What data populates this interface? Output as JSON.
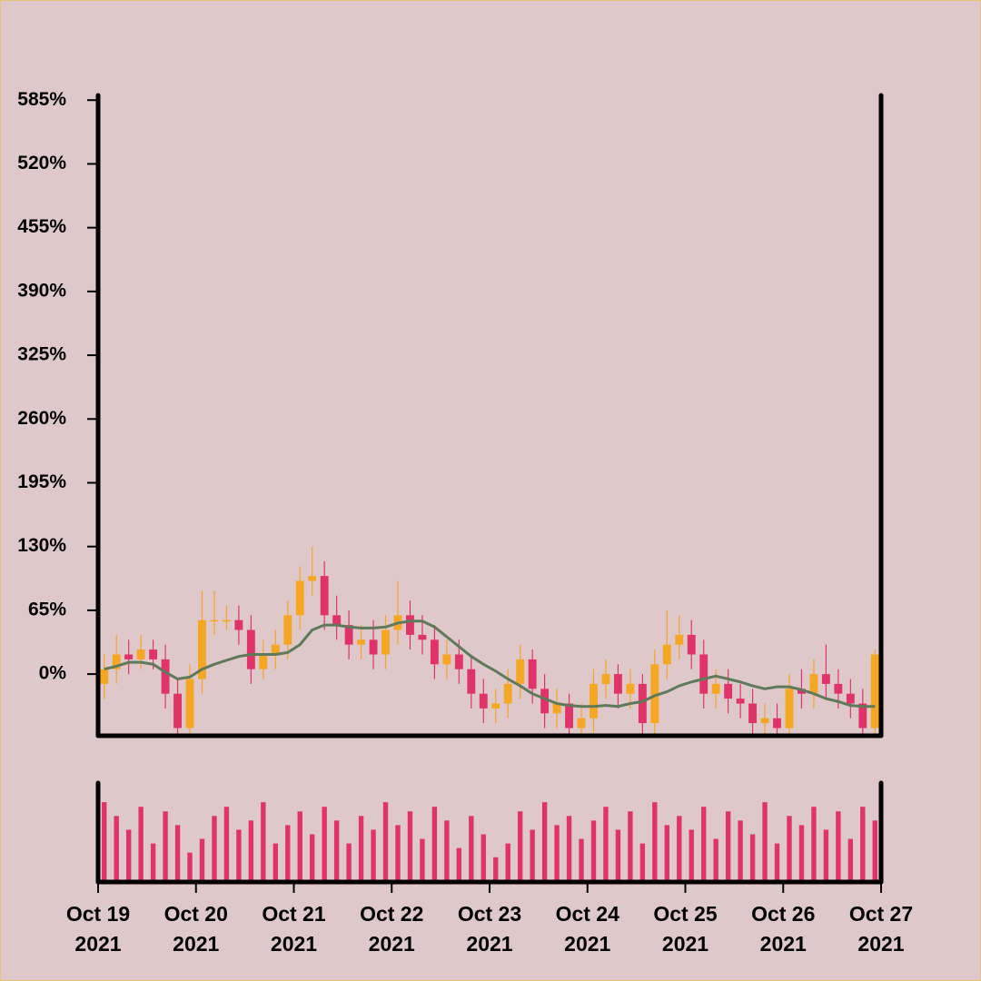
{
  "chart_data": {
    "type": "candlestick",
    "x": [
      0,
      0.125,
      0.25,
      0.375,
      0.5,
      0.625,
      0.75,
      0.875,
      1,
      1.125,
      1.25,
      1.375,
      1.5,
      1.625,
      1.75,
      1.875,
      2,
      2.125,
      2.25,
      2.375,
      2.5,
      2.625,
      2.75,
      2.875,
      3,
      3.125,
      3.25,
      3.375,
      3.5,
      3.625,
      3.75,
      3.875,
      4,
      4.125,
      4.25,
      4.375,
      4.5,
      4.625,
      4.75,
      4.875,
      5,
      5.125,
      5.25,
      5.375,
      5.5,
      5.625,
      5.75,
      5.875,
      6,
      6.125,
      6.25,
      6.375,
      6.5,
      6.625,
      6.75,
      6.875,
      7,
      7.125,
      7.25,
      7.375,
      7.5,
      7.625,
      7.75,
      7.875
    ],
    "open": [
      -10,
      5,
      20,
      15,
      25,
      15,
      -20,
      -55,
      -5,
      55,
      55,
      55,
      45,
      5,
      20,
      30,
      60,
      95,
      100,
      60,
      50,
      30,
      35,
      20,
      45,
      60,
      40,
      35,
      10,
      20,
      5,
      -20,
      -35,
      -30,
      -10,
      15,
      -15,
      -40,
      -30,
      -55,
      -45,
      -10,
      0,
      -20,
      -10,
      -50,
      10,
      30,
      40,
      20,
      -20,
      -10,
      -25,
      -30,
      -50,
      -45,
      -55,
      -15,
      -20,
      0,
      -10,
      -20,
      -30,
      -55
    ],
    "high": [
      20,
      40,
      35,
      40,
      35,
      30,
      -5,
      10,
      85,
      85,
      70,
      70,
      60,
      35,
      45,
      75,
      110,
      130,
      115,
      80,
      65,
      50,
      55,
      60,
      95,
      75,
      60,
      50,
      35,
      35,
      20,
      -5,
      -15,
      5,
      30,
      25,
      0,
      -15,
      -20,
      -30,
      5,
      15,
      10,
      5,
      0,
      25,
      65,
      60,
      55,
      35,
      5,
      5,
      -10,
      -15,
      -30,
      -30,
      0,
      5,
      15,
      30,
      5,
      -5,
      -15,
      25
    ],
    "low": [
      -25,
      -10,
      0,
      5,
      5,
      -35,
      -70,
      -70,
      -20,
      40,
      45,
      30,
      -10,
      -5,
      5,
      15,
      45,
      80,
      45,
      35,
      15,
      15,
      5,
      5,
      30,
      25,
      20,
      -5,
      -5,
      -10,
      -35,
      -50,
      -50,
      -45,
      -25,
      -30,
      -55,
      -55,
      -70,
      -70,
      -60,
      -25,
      -35,
      -35,
      -65,
      -65,
      -5,
      15,
      5,
      -35,
      -35,
      -40,
      -45,
      -65,
      -65,
      -70,
      -70,
      -35,
      -35,
      -25,
      -35,
      -45,
      -70,
      -70
    ],
    "close": [
      5,
      20,
      15,
      25,
      15,
      -20,
      -55,
      -5,
      55,
      55,
      55,
      45,
      5,
      20,
      30,
      60,
      95,
      100,
      60,
      50,
      30,
      35,
      20,
      45,
      60,
      40,
      35,
      10,
      20,
      5,
      -20,
      -35,
      -30,
      -10,
      15,
      -15,
      -40,
      -30,
      -55,
      -45,
      -10,
      0,
      -20,
      -10,
      -50,
      10,
      30,
      40,
      20,
      -20,
      -10,
      -25,
      -30,
      -50,
      -45,
      -55,
      -15,
      -20,
      0,
      -10,
      -20,
      -30,
      -55,
      20
    ],
    "ma": [
      5,
      8,
      12,
      12,
      10,
      2,
      -5,
      -3,
      5,
      10,
      14,
      18,
      20,
      20,
      20,
      22,
      30,
      45,
      50,
      50,
      48,
      47,
      47,
      48,
      52,
      54,
      54,
      48,
      38,
      28,
      18,
      10,
      3,
      -5,
      -12,
      -20,
      -25,
      -30,
      -32,
      -33,
      -33,
      -32,
      -33,
      -30,
      -28,
      -22,
      -18,
      -12,
      -8,
      -5,
      -2,
      -5,
      -8,
      -12,
      -15,
      -13,
      -13,
      -16,
      -20,
      -25,
      -28,
      -32,
      -33,
      -33
    ],
    "volume": [
      85,
      70,
      55,
      80,
      40,
      75,
      60,
      30,
      45,
      70,
      80,
      55,
      65,
      85,
      40,
      60,
      75,
      50,
      80,
      65,
      40,
      70,
      55,
      85,
      60,
      75,
      45,
      80,
      65,
      35,
      70,
      50,
      25,
      40,
      75,
      55,
      85,
      60,
      70,
      45,
      65,
      80,
      55,
      75,
      40,
      85,
      60,
      70,
      55,
      80,
      45,
      75,
      65,
      50,
      85,
      40,
      70,
      60,
      80,
      55,
      75,
      45,
      80,
      65
    ],
    "up_color": "#f5a623",
    "down_color": "#e0336a",
    "ma_color": "#5e7a5a",
    "volume_color": "#e0336a",
    "xlim": [
      0,
      8
    ],
    "ylim": [
      -61,
      588
    ],
    "volume_ylim": [
      0,
      100
    ],
    "yticks": [
      {
        "value": 0,
        "label": "0%"
      },
      {
        "value": 65,
        "label": "65%"
      },
      {
        "value": 130,
        "label": "130%"
      },
      {
        "value": 195,
        "label": "195%"
      },
      {
        "value": 260,
        "label": "260%"
      },
      {
        "value": 325,
        "label": "325%"
      },
      {
        "value": 390,
        "label": "390%"
      },
      {
        "value": 455,
        "label": "455%"
      },
      {
        "value": 520,
        "label": "520%"
      },
      {
        "value": 585,
        "label": "585%"
      }
    ],
    "xticks": [
      {
        "value": 0,
        "label": [
          "Oct 19",
          "2021"
        ]
      },
      {
        "value": 1,
        "label": [
          "Oct 20",
          "2021"
        ]
      },
      {
        "value": 2,
        "label": [
          "Oct 21",
          "2021"
        ]
      },
      {
        "value": 3,
        "label": [
          "Oct 22",
          "2021"
        ]
      },
      {
        "value": 4,
        "label": [
          "Oct 23",
          "2021"
        ]
      },
      {
        "value": 5,
        "label": [
          "Oct 24",
          "2021"
        ]
      },
      {
        "value": 6,
        "label": [
          "Oct 25",
          "2021"
        ]
      },
      {
        "value": 7,
        "label": [
          "Oct 26",
          "2021"
        ]
      },
      {
        "value": 8,
        "label": [
          "Oct 27",
          "2021"
        ]
      }
    ]
  }
}
